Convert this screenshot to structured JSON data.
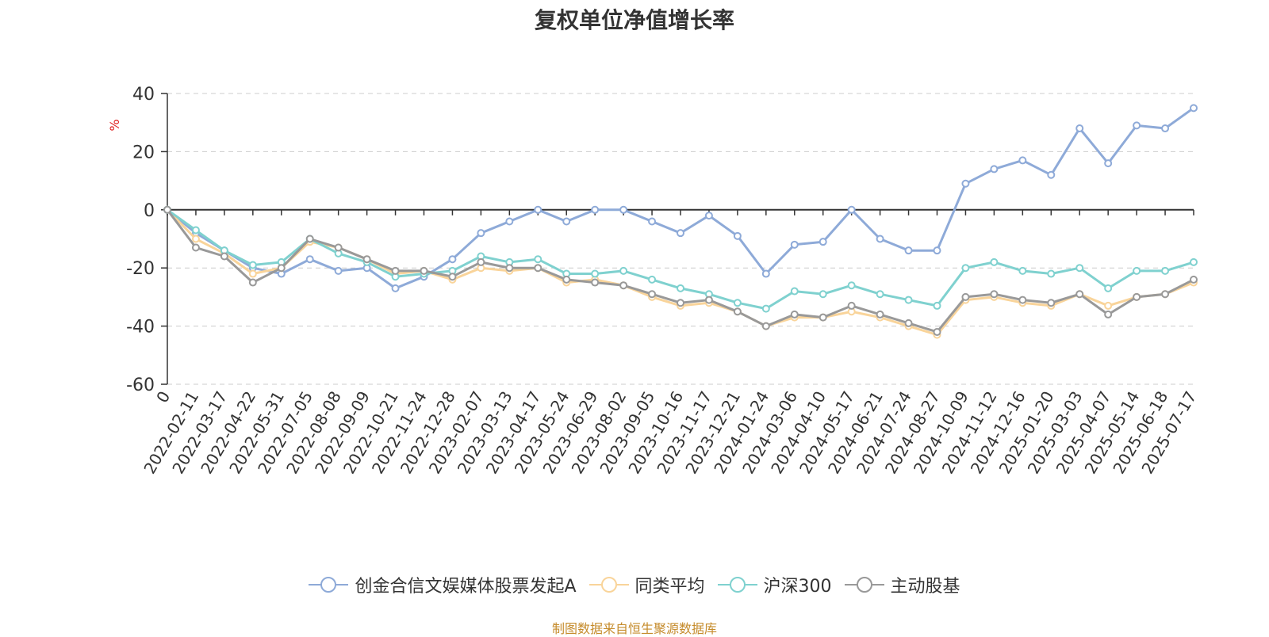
{
  "title": "复权单位净值增长率",
  "source": "制图数据来自恒生聚源数据库",
  "chart_data": {
    "type": "line",
    "ylabel": "%",
    "ylim": [
      -60,
      40
    ],
    "yticks": [
      40,
      20,
      0,
      -20,
      -40,
      -60
    ],
    "grid": "horizontal dashed",
    "legend_position": "bottom",
    "x": [
      "0",
      "2022-02-11",
      "2022-03-17",
      "2022-04-22",
      "2022-05-31",
      "2022-07-05",
      "2022-08-08",
      "2022-09-09",
      "2022-10-21",
      "2022-11-24",
      "2022-12-28",
      "2023-02-07",
      "2023-03-13",
      "2023-04-17",
      "2023-05-24",
      "2023-06-29",
      "2023-08-02",
      "2023-09-05",
      "2023-10-16",
      "2023-11-17",
      "2023-12-21",
      "2024-01-24",
      "2024-03-06",
      "2024-04-10",
      "2024-05-17",
      "2024-06-21",
      "2024-07-24",
      "2024-08-27",
      "2024-10-09",
      "2024-11-12",
      "2024-12-16",
      "2025-01-20",
      "2025-03-03",
      "2025-04-07",
      "2025-05-14",
      "2025-06-18",
      "2025-07-17"
    ],
    "series": [
      {
        "name": "创金合信文娱媒体股票发起A",
        "color": "#8eaad8",
        "values": [
          0,
          -8,
          -14,
          -20,
          -22,
          -17,
          -21,
          -20,
          -27,
          -23,
          -17,
          -8,
          -4,
          0,
          -4,
          0,
          0,
          -4,
          -8,
          -2,
          -9,
          -22,
          -12,
          -11,
          0,
          -10,
          -14,
          -14,
          9,
          14,
          17,
          12,
          28,
          16,
          29,
          28,
          35
        ]
      },
      {
        "name": "同类平均",
        "color": "#f9d49a",
        "values": [
          0,
          -10,
          -15,
          -22,
          -20,
          -11,
          -13,
          -17,
          -22,
          -21,
          -24,
          -20,
          -21,
          -20,
          -25,
          -24,
          -26,
          -30,
          -33,
          -32,
          -35,
          -40,
          -37,
          -37,
          -35,
          -37,
          -40,
          -43,
          -31,
          -30,
          -32,
          -33,
          -29,
          -33,
          -30,
          -29,
          -25
        ]
      },
      {
        "name": "沪深300",
        "color": "#7fd1cf",
        "values": [
          0,
          -7,
          -14,
          -19,
          -18,
          -10,
          -15,
          -18,
          -23,
          -22,
          -21,
          -16,
          -18,
          -17,
          -22,
          -22,
          -21,
          -24,
          -27,
          -29,
          -32,
          -34,
          -28,
          -29,
          -26,
          -29,
          -31,
          -33,
          -20,
          -18,
          -21,
          -22,
          -20,
          -27,
          -21,
          -21,
          -18
        ]
      },
      {
        "name": "主动股基",
        "color": "#999999",
        "values": [
          0,
          -13,
          -16,
          -25,
          -20,
          -10,
          -13,
          -17,
          -21,
          -21,
          -23,
          -18,
          -20,
          -20,
          -24,
          -25,
          -26,
          -29,
          -32,
          -31,
          -35,
          -40,
          -36,
          -37,
          -33,
          -36,
          -39,
          -42,
          -30,
          -29,
          -31,
          -32,
          -29,
          -36,
          -30,
          -29,
          -24
        ]
      }
    ]
  }
}
